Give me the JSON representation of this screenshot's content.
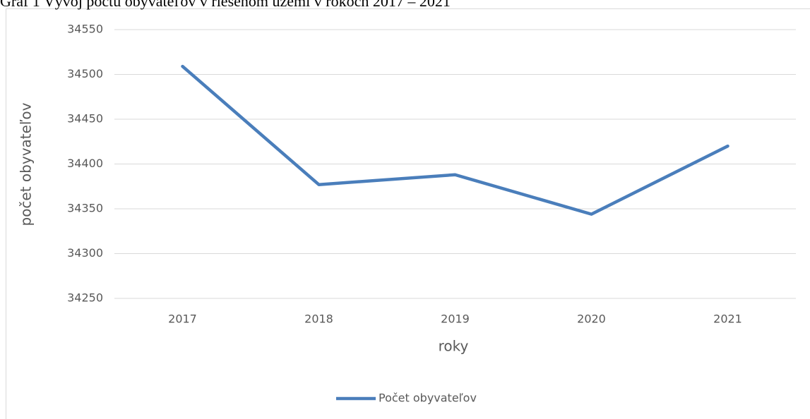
{
  "chart_data": {
    "type": "line",
    "title": "Graf 1 Vývoj počtu obyvateľov v riešenom území v rokoch 2017 – 2021",
    "categories": [
      "2017",
      "2018",
      "2019",
      "2020",
      "2021"
    ],
    "series": [
      {
        "name": "Počet obyvateľov",
        "color": "#4a7ebb",
        "values": [
          34509,
          34377,
          34388,
          34344,
          34420
        ]
      }
    ],
    "ylim": [
      34250,
      34550
    ],
    "yticks": [
      34250,
      34300,
      34350,
      34400,
      34450,
      34500,
      34550
    ],
    "xlabel": "roky",
    "ylabel": "počet obyvateľov",
    "grid": true,
    "legend": "bottom"
  }
}
